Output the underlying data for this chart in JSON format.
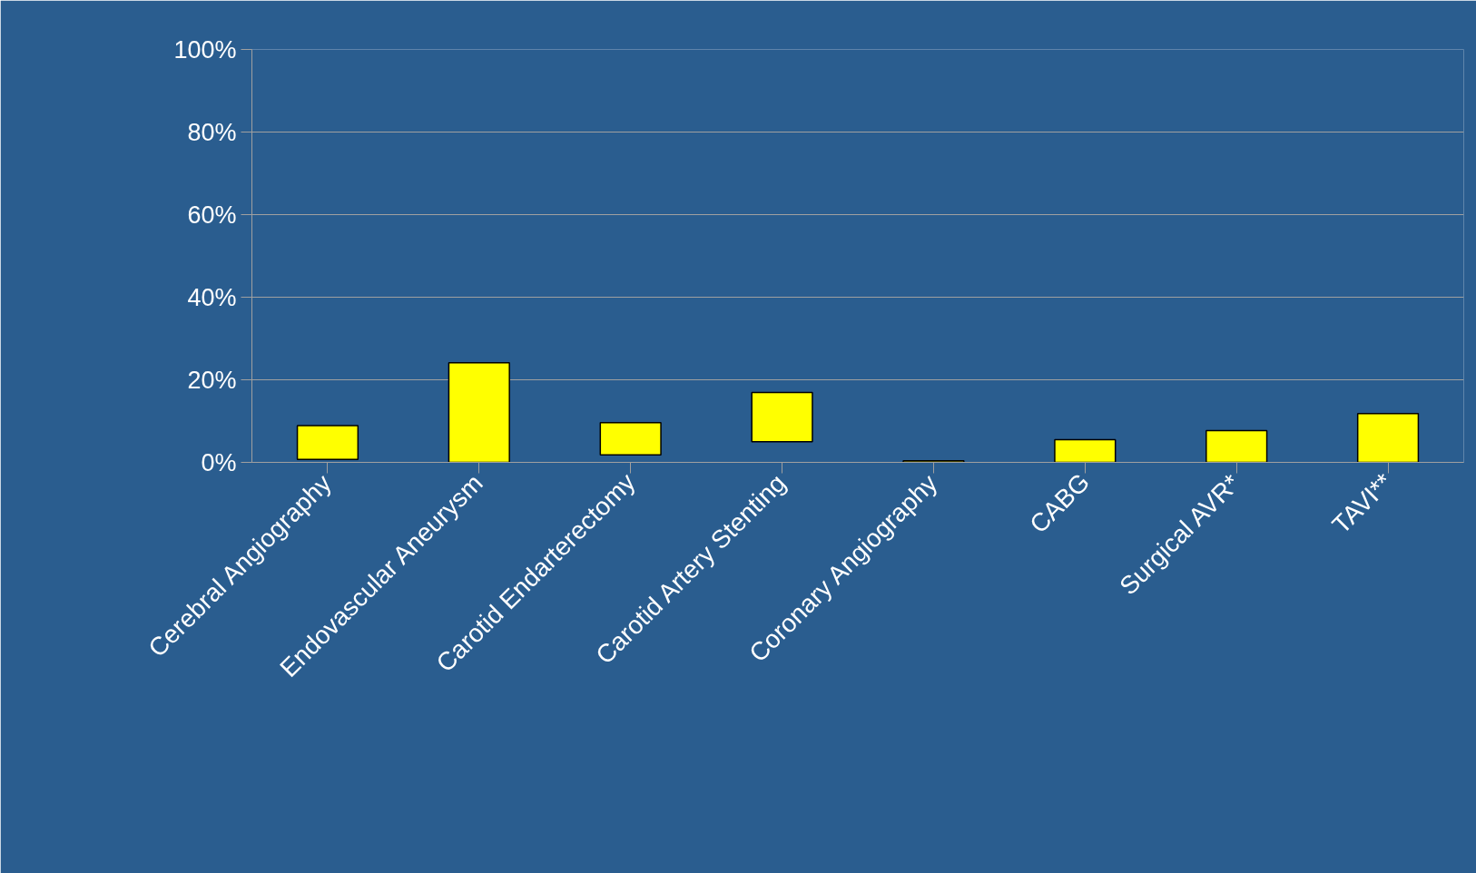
{
  "chart_data": {
    "type": "bar",
    "categories": [
      "Cerebral Angiography",
      "Endovascular Aneurysm",
      "Carotid Endarterectomy",
      "Carotid Artery Stenting",
      "Coronary Angiography",
      "CABG",
      "Surgical AVR*",
      "TAVI**"
    ],
    "base": [
      0.7,
      0,
      1.8,
      5,
      0,
      0,
      0,
      0
    ],
    "values": [
      8.2,
      24.1,
      7.8,
      11.9,
      0.4,
      5.5,
      7.7,
      11.8
    ],
    "color": "#ffff00",
    "ylim": [
      0,
      100
    ],
    "yticks": [
      {
        "value": 0,
        "label": "0%"
      },
      {
        "value": 20,
        "label": "20%"
      },
      {
        "value": 40,
        "label": "40%"
      },
      {
        "value": 60,
        "label": "60%"
      },
      {
        "value": 80,
        "label": "80%"
      },
      {
        "value": 100,
        "label": "100%"
      }
    ],
    "grid": "y"
  }
}
